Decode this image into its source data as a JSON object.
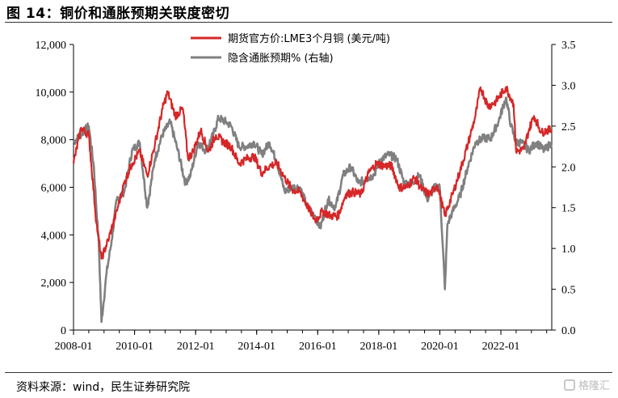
{
  "figure_title": "图 14：铜价和通胀预期关联度密切",
  "source_text": "资料来源：wind，民生证券研究院",
  "watermark_text": "格隆汇",
  "chart_data": {
    "type": "line",
    "title": "",
    "grid": false,
    "legend_position": "top-center",
    "x_tick_labels": [
      "2008-01",
      "2010-01",
      "2012-01",
      "2014-01",
      "2016-01",
      "2018-01",
      "2020-01",
      "2022-01"
    ],
    "xlim": [
      "2008-01",
      "2023-09"
    ],
    "y_left": {
      "label": "",
      "lim": [
        0,
        12000
      ],
      "ticks": [
        0,
        2000,
        4000,
        6000,
        8000,
        10000,
        12000
      ],
      "tick_labels": [
        "0",
        "2,000",
        "4,000",
        "6,000",
        "8,000",
        "10,000",
        "12,000"
      ]
    },
    "y_right": {
      "label": "",
      "lim": [
        0.0,
        3.5
      ],
      "ticks": [
        0.0,
        0.5,
        1.0,
        1.5,
        2.0,
        2.5,
        3.0,
        3.5
      ],
      "tick_labels": [
        "0.0",
        "0.5",
        "1.0",
        "1.5",
        "2.0",
        "2.5",
        "3.0",
        "3.5"
      ]
    },
    "series": [
      {
        "name": "期货官方价:LME3个月铜 (美元/吨)",
        "axis": "left",
        "color": "#d62728",
        "x": [
          "2008-01",
          "2008-04",
          "2008-07",
          "2008-10",
          "2008-12",
          "2009-03",
          "2009-06",
          "2009-09",
          "2009-12",
          "2010-03",
          "2010-06",
          "2010-09",
          "2010-12",
          "2011-02",
          "2011-05",
          "2011-08",
          "2011-10",
          "2011-12",
          "2012-03",
          "2012-06",
          "2012-09",
          "2012-12",
          "2013-03",
          "2013-06",
          "2013-09",
          "2013-12",
          "2014-03",
          "2014-06",
          "2014-09",
          "2014-12",
          "2015-03",
          "2015-06",
          "2015-09",
          "2015-12",
          "2016-03",
          "2016-06",
          "2016-09",
          "2016-12",
          "2017-03",
          "2017-06",
          "2017-09",
          "2017-12",
          "2018-03",
          "2018-06",
          "2018-09",
          "2018-12",
          "2019-03",
          "2019-06",
          "2019-09",
          "2019-12",
          "2020-03",
          "2020-06",
          "2020-09",
          "2020-12",
          "2021-03",
          "2021-05",
          "2021-08",
          "2021-11",
          "2022-03",
          "2022-06",
          "2022-07",
          "2022-10",
          "2022-12",
          "2023-02",
          "2023-05",
          "2023-07",
          "2023-09"
        ],
        "y": [
          7000,
          8500,
          8200,
          4500,
          3000,
          3900,
          5000,
          6200,
          7000,
          7500,
          6500,
          7800,
          9300,
          10000,
          9000,
          9300,
          7200,
          7500,
          8400,
          7500,
          8200,
          7900,
          7700,
          7000,
          7200,
          7300,
          6600,
          6900,
          7000,
          6400,
          5900,
          5800,
          5200,
          4600,
          5000,
          4800,
          4800,
          5700,
          5800,
          5700,
          6600,
          7000,
          6900,
          6900,
          6000,
          6000,
          6400,
          5900,
          5700,
          6100,
          4800,
          5700,
          6700,
          7800,
          9000,
          10200,
          9400,
          9600,
          10200,
          9500,
          7500,
          7600,
          8400,
          9000,
          8300,
          8400,
          8400
        ]
      },
      {
        "name": "隐含通胀预期% (右轴)",
        "axis": "right",
        "color": "#808080",
        "x": [
          "2008-01",
          "2008-04",
          "2008-07",
          "2008-09",
          "2008-11",
          "2008-12",
          "2009-02",
          "2009-04",
          "2009-06",
          "2009-09",
          "2009-12",
          "2010-03",
          "2010-06",
          "2010-09",
          "2010-12",
          "2011-03",
          "2011-06",
          "2011-09",
          "2011-11",
          "2012-02",
          "2012-05",
          "2012-08",
          "2012-10",
          "2013-01",
          "2013-03",
          "2013-06",
          "2013-09",
          "2013-12",
          "2014-03",
          "2014-06",
          "2014-09",
          "2014-12",
          "2015-03",
          "2015-06",
          "2015-09",
          "2015-12",
          "2016-02",
          "2016-05",
          "2016-08",
          "2016-11",
          "2017-02",
          "2017-05",
          "2017-08",
          "2017-11",
          "2018-02",
          "2018-05",
          "2018-08",
          "2018-11",
          "2019-02",
          "2019-05",
          "2019-08",
          "2019-11",
          "2020-01",
          "2020-03",
          "2020-04",
          "2020-06",
          "2020-09",
          "2020-12",
          "2021-03",
          "2021-06",
          "2021-09",
          "2021-12",
          "2022-03",
          "2022-05",
          "2022-07",
          "2022-09",
          "2022-12",
          "2023-03",
          "2023-06",
          "2023-09"
        ],
        "y": [
          2.3,
          2.4,
          2.5,
          2.0,
          1.0,
          0.1,
          0.7,
          1.1,
          1.6,
          1.7,
          2.2,
          2.3,
          1.5,
          2.1,
          2.4,
          2.55,
          2.2,
          1.8,
          1.9,
          2.3,
          2.2,
          2.4,
          2.6,
          2.55,
          2.5,
          2.25,
          2.25,
          2.3,
          2.15,
          2.3,
          2.05,
          1.7,
          1.75,
          1.75,
          1.5,
          1.4,
          1.25,
          1.6,
          1.5,
          1.9,
          2.0,
          1.8,
          1.85,
          1.9,
          2.1,
          2.15,
          2.1,
          1.8,
          1.8,
          1.9,
          1.6,
          1.75,
          1.75,
          0.5,
          1.3,
          1.45,
          1.65,
          2.0,
          2.3,
          2.35,
          2.35,
          2.55,
          2.85,
          2.5,
          2.3,
          2.3,
          2.2,
          2.3,
          2.2,
          2.3
        ]
      }
    ]
  }
}
